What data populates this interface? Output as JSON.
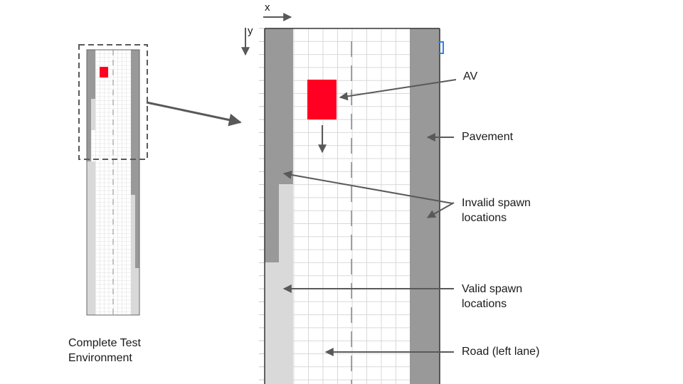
{
  "colors": {
    "background": "#ffffff",
    "grid_line": "#d9d9d9",
    "pavement": "#999999",
    "valid_spawn": "#d9d9d9",
    "av": "#ff0022",
    "arrow": "#595959",
    "marker": "#2f80ed"
  },
  "axes": {
    "x": "x",
    "y": "y"
  },
  "labels": {
    "av": "AV",
    "pavement": "Pavement",
    "invalid_spawn": "Invalid spawn\nlocations",
    "valid_spawn": "Valid spawn\nlocations",
    "road": "Road (left lane)",
    "complete_env": "Complete Test\nEnvironment"
  }
}
